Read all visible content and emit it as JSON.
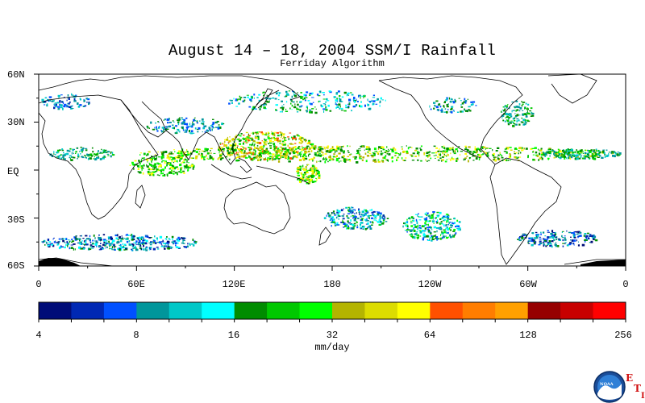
{
  "title": "August 14 – 18, 2004 SSM/I Rainfall",
  "subtitle": "Ferriday Algorithm",
  "latitude_labels": [
    "60N",
    "30N",
    "EQ",
    "30S",
    "60S"
  ],
  "longitude_labels": [
    "0",
    "60E",
    "120E",
    "180",
    "120W",
    "60W",
    "0"
  ],
  "colorbar": {
    "units": "mm/day",
    "tick_labels": [
      "4",
      "8",
      "16",
      "32",
      "64",
      "128",
      "256"
    ],
    "colors": [
      "#000c78",
      "#0028b4",
      "#0050ff",
      "#00969b",
      "#00c8c8",
      "#00ffff",
      "#008c00",
      "#00c800",
      "#00ff00",
      "#b4b400",
      "#dcdc00",
      "#ffff00",
      "#ff5000",
      "#ff7d00",
      "#ffa000",
      "#960000",
      "#c80000",
      "#ff0000"
    ]
  },
  "logo": {
    "icon": "noaa-logo-icon",
    "text": "NOAA",
    "letters": [
      "E",
      "T",
      "I"
    ]
  }
}
